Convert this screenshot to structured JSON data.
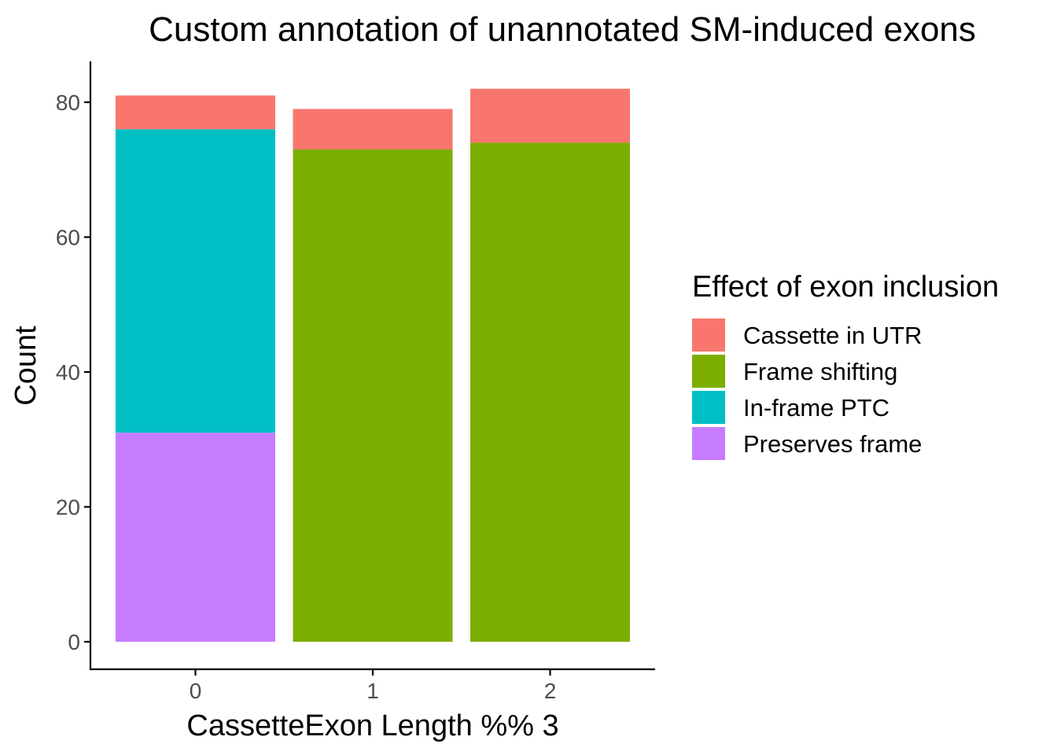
{
  "chart_data": {
    "type": "bar",
    "stacked": true,
    "title": "Custom annotation of unannotated SM-induced exons",
    "xlabel": "CassetteExon Length %% 3",
    "ylabel": "Count",
    "categories": [
      "0",
      "1",
      "2"
    ],
    "y_ticks": [
      "0",
      "20",
      "40",
      "60",
      "80"
    ],
    "ylim": [
      0,
      85
    ],
    "grid": false,
    "legend": {
      "title": "Effect of exon inclusion",
      "placement": "right"
    },
    "series": [
      {
        "name": "Cassette in UTR",
        "color": "#F8766D",
        "values": [
          5,
          6,
          8
        ]
      },
      {
        "name": "Frame shifting",
        "color": "#7CAE00",
        "values": [
          0,
          73,
          74
        ]
      },
      {
        "name": "In-frame PTC",
        "color": "#00BFC4",
        "values": [
          45,
          0,
          0
        ]
      },
      {
        "name": "Preserves frame",
        "color": "#C77CFF",
        "values": [
          31,
          0,
          0
        ]
      }
    ],
    "stack_order_bottom_to_top": [
      "Preserves frame",
      "In-frame PTC",
      "Frame shifting",
      "Cassette in UTR"
    ]
  }
}
